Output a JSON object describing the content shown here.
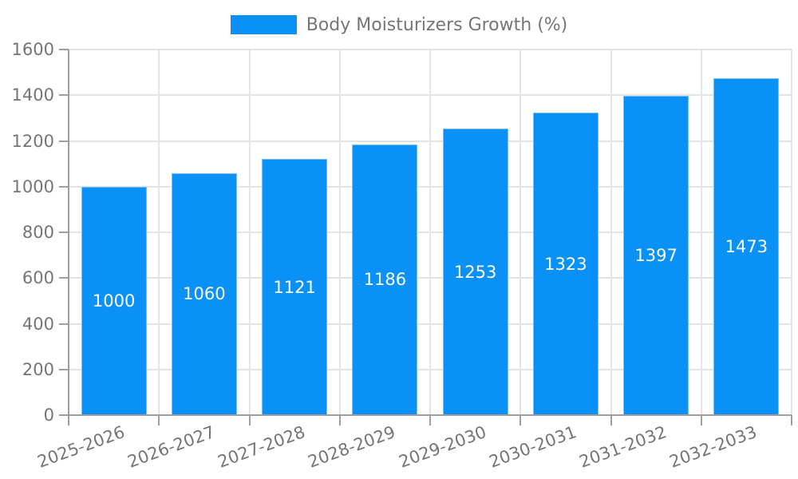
{
  "legend": {
    "label": "Body Moisturizers Growth (%)"
  },
  "chart_data": {
    "type": "bar",
    "title": "Body Moisturizers Growth (%)",
    "categories": [
      "2025-2026",
      "2026-2027",
      "2027-2028",
      "2028-2029",
      "2029-2030",
      "2030-2031",
      "2031-2032",
      "2032-2033"
    ],
    "values": [
      1000,
      1060,
      1121,
      1186,
      1253,
      1323,
      1397,
      1473
    ],
    "value_labels": [
      "1000",
      "1060",
      "1121",
      "1186",
      "1253",
      "1323",
      "1397",
      "1473"
    ],
    "yticks": [
      0,
      200,
      400,
      600,
      800,
      1000,
      1200,
      1400,
      1600
    ],
    "ytick_labels": [
      "0",
      "200",
      "400",
      "600",
      "800",
      "1000",
      "1200",
      "1400",
      "1600"
    ],
    "ylim": [
      0,
      1600
    ],
    "xlabel": "",
    "ylabel": "",
    "grid": true,
    "legend_position": "top-center",
    "x_label_rotation_deg": -20,
    "colors": {
      "bar": "#0991f7",
      "bar_border": "#7cc0f8",
      "value_label": "#ffffff",
      "tick_label": "#757575",
      "grid": "#e3e3e3",
      "axis": "#9e9e9e",
      "background": "#ffffff"
    }
  }
}
